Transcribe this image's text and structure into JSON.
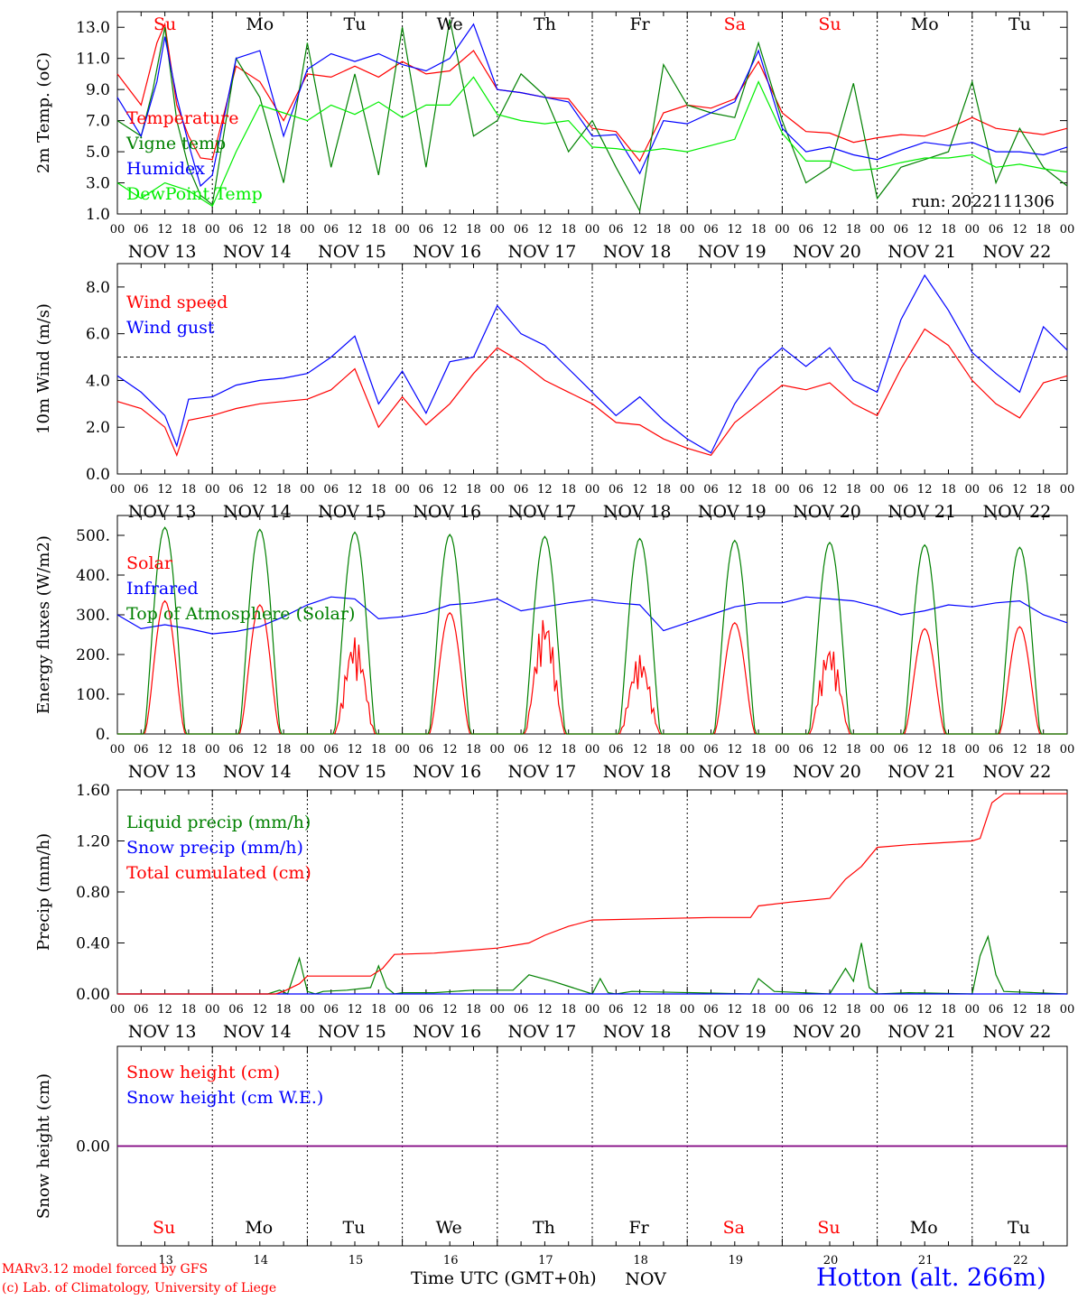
{
  "time_axis": {
    "day_starts": [
      "NOV 13",
      "NOV 14",
      "NOV 15",
      "NOV 16",
      "NOV 17",
      "NOV 18",
      "NOV 19",
      "NOV 20",
      "NOV 21",
      "NOV 22"
    ],
    "hour_ticks": [
      "00",
      "06",
      "12",
      "18"
    ],
    "end_tick": "00",
    "weekdays": [
      "Su",
      "Mo",
      "Tu",
      "We",
      "Th",
      "Fr",
      "Sa",
      "Su",
      "Mo",
      "Tu"
    ],
    "weekend_days": [
      0,
      6,
      7
    ],
    "day_numbers": [
      "13",
      "14",
      "15",
      "16",
      "17",
      "18",
      "19",
      "20",
      "21",
      "22"
    ],
    "month": "NOV",
    "x_title": "Time UTC (GMT+0h)"
  },
  "footer": {
    "credit_line1": "MARv3.12 model forced by GFS",
    "credit_line2": "(c) Lab. of Climatology, University of Liege",
    "station": "Hotton (alt. 266m)"
  },
  "colors": {
    "red": "#ff0000",
    "green": "#008000",
    "blue": "#0000ff",
    "lightgreen": "#00ee00",
    "purple": "#800080"
  },
  "chart_data": [
    {
      "type": "line",
      "ylabel": "2m Temp. (oC)",
      "ylim": [
        1,
        14
      ],
      "yticks": [
        "1.0",
        "3.0",
        "5.0",
        "7.0",
        "9.0",
        "11.0",
        "13.0"
      ],
      "x_units": "hours since NOV 13 00 UTC",
      "annotation": "run: 2022111306",
      "legend": [
        "Temperature",
        "Vigne temp",
        "Humidex",
        "DewPoint Temp"
      ],
      "series": [
        {
          "name": "Temperature",
          "color": "#ff0000",
          "x": [
            0,
            6,
            10,
            12,
            15,
            18,
            21,
            24,
            30,
            36,
            42,
            48,
            54,
            60,
            66,
            72,
            78,
            84,
            90,
            96,
            102,
            108,
            114,
            120,
            126,
            132,
            138,
            144,
            150,
            156,
            162,
            168,
            174,
            180,
            186,
            192,
            198,
            204,
            210,
            216,
            222,
            228,
            234,
            240
          ],
          "y": [
            10,
            8,
            12,
            13.2,
            8,
            6,
            4.6,
            4.5,
            10.5,
            9.5,
            7,
            10,
            9.8,
            10.5,
            9.8,
            10.8,
            10,
            10.2,
            11.5,
            9,
            8.8,
            8.5,
            8.4,
            6.5,
            6.3,
            4.4,
            7.5,
            8,
            7.8,
            8.4,
            10.8,
            7.5,
            6.3,
            6.2,
            5.6,
            5.9,
            6.1,
            6.0,
            6.5,
            7.2,
            6.5,
            6.3,
            6.1,
            6.5
          ]
        },
        {
          "name": "Vigne temp",
          "color": "#008000",
          "x": [
            0,
            6,
            9,
            12,
            15,
            18,
            21,
            24,
            30,
            36,
            42,
            48,
            54,
            60,
            66,
            72,
            78,
            84,
            90,
            96,
            102,
            108,
            114,
            120,
            126,
            132,
            138,
            144,
            150,
            156,
            162,
            168,
            174,
            180,
            186,
            192,
            198,
            204,
            210,
            216,
            222,
            228,
            234,
            240
          ],
          "y": [
            7,
            6,
            9,
            13,
            7,
            4,
            2.2,
            1.6,
            11,
            8.5,
            3,
            12,
            4,
            10,
            3.5,
            13,
            4,
            13.5,
            6,
            7,
            10,
            8.6,
            5,
            7,
            4,
            1.2,
            10.6,
            8,
            7.5,
            7.2,
            12,
            7,
            3,
            4,
            9.4,
            2,
            4,
            4.5,
            5,
            9.5,
            3,
            6.5,
            4,
            2.8
          ]
        },
        {
          "name": "Humidex",
          "color": "#0000ff",
          "x": [
            0,
            6,
            10,
            12,
            15,
            18,
            21,
            24,
            30,
            36,
            42,
            48,
            54,
            60,
            66,
            72,
            78,
            84,
            90,
            96,
            102,
            108,
            114,
            120,
            126,
            132,
            138,
            144,
            150,
            156,
            162,
            168,
            174,
            180,
            186,
            192,
            198,
            204,
            210,
            216,
            222,
            228,
            234,
            240
          ],
          "y": [
            8.5,
            6,
            9.5,
            12.4,
            8.5,
            5.5,
            2.8,
            3.5,
            11,
            11.5,
            6,
            10.3,
            11.3,
            10.8,
            11.3,
            10.6,
            10.2,
            11,
            13.2,
            9,
            8.8,
            8.5,
            8.2,
            6,
            6.1,
            3.6,
            7,
            6.8,
            7.5,
            8.2,
            11.5,
            6.5,
            5,
            5.3,
            4.8,
            4.5,
            5.1,
            5.6,
            5.4,
            5.6,
            5.0,
            5.0,
            4.8,
            5.3
          ]
        },
        {
          "name": "DewPoint Temp",
          "color": "#00ee00",
          "x": [
            0,
            6,
            12,
            18,
            24,
            30,
            36,
            42,
            48,
            54,
            60,
            66,
            72,
            78,
            84,
            90,
            96,
            102,
            108,
            114,
            120,
            126,
            132,
            138,
            144,
            150,
            156,
            162,
            168,
            174,
            180,
            186,
            192,
            198,
            204,
            210,
            216,
            222,
            228,
            234,
            240
          ],
          "y": [
            3,
            2,
            3,
            2.5,
            1.5,
            5,
            8,
            7.5,
            7,
            8,
            7.4,
            8.2,
            7.2,
            8,
            8,
            9.8,
            7.4,
            7,
            6.8,
            7,
            5.3,
            5.2,
            5.0,
            5.2,
            5.0,
            5.4,
            5.8,
            9.5,
            6.2,
            4.4,
            4.4,
            3.8,
            3.9,
            4.3,
            4.6,
            4.6,
            4.8,
            4.0,
            4.2,
            3.9,
            3.7
          ]
        }
      ]
    },
    {
      "type": "line",
      "ylabel": "10m Wind (m/s)",
      "ylim": [
        0,
        9
      ],
      "yticks": [
        "0.0",
        "2.0",
        "4.0",
        "6.0",
        "8.0"
      ],
      "reference_line": 5,
      "legend": [
        "Wind speed",
        "Wind gust"
      ],
      "series": [
        {
          "name": "Wind speed",
          "color": "#ff0000",
          "x": [
            0,
            6,
            12,
            15,
            18,
            24,
            30,
            36,
            42,
            48,
            54,
            60,
            66,
            72,
            78,
            84,
            90,
            96,
            102,
            108,
            114,
            120,
            126,
            132,
            138,
            144,
            150,
            156,
            162,
            168,
            174,
            180,
            186,
            192,
            198,
            204,
            210,
            216,
            222,
            228,
            234,
            240
          ],
          "y": [
            3.1,
            2.8,
            2,
            0.8,
            2.3,
            2.5,
            2.8,
            3.0,
            3.1,
            3.2,
            3.6,
            4.5,
            2.0,
            3.3,
            2.1,
            3.0,
            4.3,
            5.4,
            4.8,
            4.0,
            3.5,
            3.0,
            2.2,
            2.1,
            1.5,
            1.1,
            0.8,
            2.2,
            3.0,
            3.8,
            3.6,
            3.9,
            3.0,
            2.5,
            4.5,
            6.2,
            5.5,
            4.0,
            3.0,
            2.4,
            3.9,
            4.2
          ]
        },
        {
          "name": "Wind gust",
          "color": "#0000ff",
          "x": [
            0,
            6,
            12,
            15,
            18,
            24,
            30,
            36,
            42,
            48,
            54,
            60,
            66,
            72,
            78,
            84,
            90,
            96,
            102,
            108,
            114,
            120,
            126,
            132,
            138,
            144,
            150,
            156,
            162,
            168,
            174,
            180,
            186,
            192,
            198,
            204,
            210,
            216,
            222,
            228,
            234,
            240
          ],
          "y": [
            4.2,
            3.5,
            2.5,
            1.2,
            3.2,
            3.3,
            3.8,
            4.0,
            4.1,
            4.3,
            5.0,
            5.9,
            3.0,
            4.4,
            2.6,
            4.8,
            5.0,
            7.2,
            6.0,
            5.5,
            4.5,
            3.5,
            2.5,
            3.3,
            2.3,
            1.5,
            0.9,
            3.0,
            4.5,
            5.4,
            4.6,
            5.4,
            4.0,
            3.5,
            6.6,
            8.5,
            7.0,
            5.2,
            4.3,
            3.5,
            6.3,
            5.3
          ]
        }
      ]
    },
    {
      "type": "line",
      "ylabel": "Energy fluxes (W/m2)",
      "ylim": [
        0,
        550
      ],
      "yticks": [
        "0.",
        "100.",
        "200.",
        "300.",
        "400.",
        "500."
      ],
      "legend": [
        "Solar",
        "Infrared",
        "Top of Atmosphere (Solar)"
      ],
      "series": [
        {
          "name": "Solar",
          "color": "#ff0000",
          "daily_peak_hour": 12,
          "daily_peaks": [
            335,
            325,
            245,
            305,
            300,
            200,
            280,
            225,
            265,
            270
          ]
        },
        {
          "name": "Infrared",
          "color": "#0000ff",
          "x": [
            0,
            6,
            12,
            18,
            24,
            30,
            36,
            42,
            48,
            54,
            60,
            66,
            72,
            78,
            84,
            90,
            96,
            102,
            108,
            114,
            120,
            126,
            132,
            138,
            144,
            150,
            156,
            162,
            168,
            174,
            180,
            186,
            192,
            198,
            204,
            210,
            216,
            222,
            228,
            234,
            240
          ],
          "y": [
            300,
            265,
            275,
            265,
            252,
            258,
            270,
            295,
            325,
            345,
            340,
            290,
            295,
            305,
            325,
            330,
            340,
            310,
            320,
            330,
            338,
            330,
            325,
            260,
            280,
            300,
            320,
            330,
            330,
            345,
            340,
            335,
            320,
            300,
            310,
            325,
            320,
            330,
            335,
            300,
            280
          ]
        },
        {
          "name": "Top of Atmosphere (Solar)",
          "color": "#008000",
          "daily_peak_hour": 12,
          "daily_peaks": [
            520,
            515,
            508,
            502,
            497,
            492,
            487,
            482,
            476,
            470
          ]
        }
      ]
    },
    {
      "type": "line",
      "ylabel": "Precip (mm/h)",
      "ylim": [
        0,
        1.6
      ],
      "yticks": [
        "0.00",
        "0.40",
        "0.80",
        "1.20",
        "1.60"
      ],
      "legend": [
        "Liquid precip (mm/h)",
        "Snow precip (mm/h)",
        "Total cumulated (cm)"
      ],
      "series": [
        {
          "name": "Liquid precip (mm/h)",
          "color": "#008000",
          "x": [
            0,
            38,
            41,
            43,
            46,
            48,
            50,
            52,
            58,
            64,
            66,
            68,
            70,
            72,
            80,
            90,
            100,
            104,
            110,
            120,
            122,
            124,
            126,
            130,
            160,
            162,
            166,
            180,
            184,
            186,
            188,
            190,
            192,
            200,
            216,
            218,
            220,
            222,
            224,
            240
          ],
          "y": [
            0,
            0,
            0.03,
            0,
            0.28,
            0.02,
            0,
            0.02,
            0.03,
            0.05,
            0.22,
            0.05,
            0,
            0.01,
            0.01,
            0.03,
            0.03,
            0.15,
            0.1,
            0,
            0.12,
            0.01,
            0,
            0.02,
            0,
            0.12,
            0.02,
            0,
            0.2,
            0.1,
            0.4,
            0.05,
            0,
            0.01,
            0,
            0.3,
            0.45,
            0.15,
            0.02,
            0
          ]
        },
        {
          "name": "Snow precip (mm/h)",
          "color": "#0000ff",
          "x": [
            0,
            240
          ],
          "y": [
            0,
            0
          ]
        },
        {
          "name": "Total cumulated (cm)",
          "color": "#ff0000",
          "x": [
            0,
            40,
            42,
            46,
            48,
            64,
            67,
            70,
            80,
            96,
            104,
            108,
            114,
            120,
            150,
            160,
            162,
            170,
            180,
            184,
            188,
            192,
            200,
            216,
            218,
            221,
            224,
            240
          ],
          "y": [
            0,
            0,
            0.02,
            0.08,
            0.14,
            0.14,
            0.2,
            0.31,
            0.32,
            0.36,
            0.4,
            0.46,
            0.53,
            0.58,
            0.6,
            0.6,
            0.69,
            0.72,
            0.75,
            0.9,
            1.0,
            1.15,
            1.17,
            1.2,
            1.22,
            1.5,
            1.57,
            1.57
          ]
        }
      ]
    },
    {
      "type": "line",
      "ylabel": "Snow height (cm)",
      "yticks": [
        "0.00"
      ],
      "legend": [
        "Snow height (cm)",
        "Snow height (cm W.E.)"
      ],
      "series": [
        {
          "name": "Snow height (cm)",
          "color": "#ff0000",
          "x": [
            0,
            240
          ],
          "y": [
            0,
            0
          ]
        },
        {
          "name": "Snow height (cm W.E.)",
          "color": "#0000ff",
          "x": [
            0,
            240
          ],
          "y": [
            0,
            0
          ]
        }
      ]
    }
  ]
}
